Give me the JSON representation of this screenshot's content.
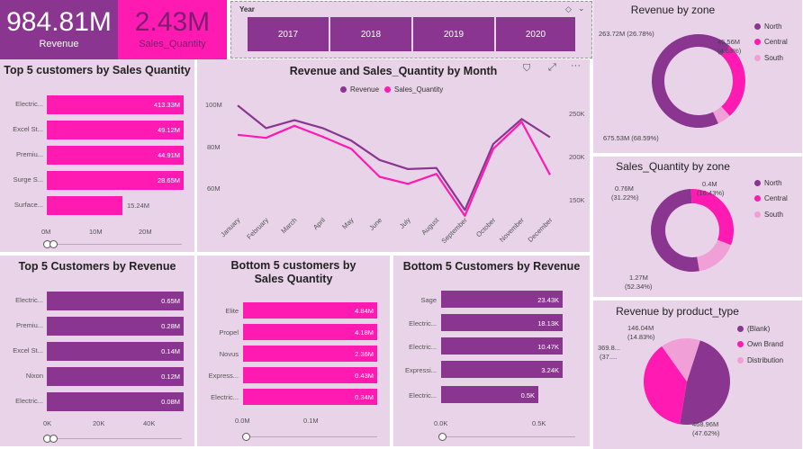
{
  "colors": {
    "purple": "#8a3590",
    "pink": "#ff1ab2",
    "light_pink": "#f0a0d6",
    "panel": "#e8d3e8"
  },
  "kpis": {
    "revenue": {
      "value": "984.81M",
      "label": "Revenue"
    },
    "sales_qty": {
      "value": "2.43M",
      "label": "Sales_Quantity"
    }
  },
  "year_slicer": {
    "title": "Year",
    "years": [
      "2017",
      "2018",
      "2019",
      "2020"
    ]
  },
  "top5_qty": {
    "title": "Top 5 customers by Sales Quantity",
    "rows": [
      {
        "label": "Electric...",
        "value": 413.33,
        "text": "413.33M"
      },
      {
        "label": "Excel St...",
        "value": 49.12,
        "text": "49.12M"
      },
      {
        "label": "Premiu...",
        "value": 44.91,
        "text": "44.91M"
      },
      {
        "label": "Surge S...",
        "value": 28.65,
        "text": "28.65M"
      },
      {
        "label": "Surface...",
        "value": 15.24,
        "text": "15.24M"
      }
    ],
    "ticks": [
      "0M",
      "10M",
      "20M"
    ],
    "axis_max": 30
  },
  "line_chart": {
    "title": "Revenue and Sales_Quantity by Month",
    "legend": [
      "Revenue",
      "Sales_Quantity"
    ],
    "left_ticks": [
      "100M",
      "80M",
      "60M"
    ],
    "right_ticks": [
      "250K",
      "200K",
      "150K"
    ],
    "months": [
      "January",
      "February",
      "March",
      "April",
      "May",
      "June",
      "July",
      "August",
      "September",
      "October",
      "November",
      "December"
    ]
  },
  "chart_data": {
    "type": "line",
    "x": [
      "January",
      "February",
      "March",
      "April",
      "May",
      "June",
      "July",
      "August",
      "September",
      "October",
      "November",
      "December"
    ],
    "series": [
      {
        "name": "Revenue",
        "axis": "left",
        "values": [
          99,
          89,
          92.5,
          89,
          83.5,
          75,
          71,
          71.5,
          53,
          82,
          93,
          85
        ]
      },
      {
        "name": "Sales_Quantity",
        "axis": "right",
        "values": [
          222,
          219,
          231,
          220,
          208,
          180,
          173,
          183,
          141,
          208,
          235,
          182
        ]
      }
    ],
    "y_left_range": [
      50,
      105
    ],
    "y_right_range": [
      140,
      265
    ]
  },
  "revenue_zone": {
    "title": "Revenue by zone",
    "legend": [
      "North",
      "Central",
      "South"
    ],
    "labels": {
      "north": "675.53M (68.59%)",
      "central": "263.72M (26.78%)",
      "south_value": "45.56M",
      "south_pct": "(4.63%)"
    },
    "shares": [
      68.59,
      26.78,
      4.63
    ]
  },
  "qty_zone": {
    "title": "Sales_Quantity by zone",
    "legend": [
      "North",
      "Central",
      "South"
    ],
    "labels": {
      "north_value": "1.27M",
      "north_pct": "(52.34%)",
      "central_value": "0.76M",
      "central_pct": "(31.22%)",
      "south_value": "0.4M",
      "south_pct": "(16.43%)"
    },
    "shares": [
      52.34,
      31.22,
      16.43
    ]
  },
  "product_type": {
    "title": "Revenue by product_type",
    "legend": [
      "(Blank)",
      "Own Brand",
      "Distribution"
    ],
    "labels": {
      "blank_value": "468.96M",
      "blank_pct": "(47.62%)",
      "own_value": "369.8...",
      "own_pct": "(37....",
      "dist_value": "146.04M",
      "dist_pct": "(14.83%)"
    },
    "shares": [
      47.62,
      37.55,
      14.83
    ]
  },
  "top5_rev": {
    "title": "Top 5 Customers by Revenue",
    "rows": [
      {
        "label": "Electric...",
        "value": 0.65,
        "text": "0.65M"
      },
      {
        "label": "Premiu...",
        "value": 0.28,
        "text": "0.28M"
      },
      {
        "label": "Excel St...",
        "value": 0.14,
        "text": "0.14M"
      },
      {
        "label": "Nixon",
        "value": 0.12,
        "text": "0.12M"
      },
      {
        "label": "Electric...",
        "value": 0.08,
        "text": "0.08M"
      }
    ],
    "ticks": [
      "0K",
      "20K",
      "40K"
    ]
  },
  "bottom5_qty": {
    "title": "Bottom 5 customers by Sales Quantity",
    "rows": [
      {
        "label": "Elite",
        "value": 4.84,
        "text": "4.84M"
      },
      {
        "label": "Propel",
        "value": 4.18,
        "text": "4.18M"
      },
      {
        "label": "Novus",
        "value": 2.36,
        "text": "2.36M"
      },
      {
        "label": "Express...",
        "value": 0.43,
        "text": "0.43M"
      },
      {
        "label": "Electric...",
        "value": 0.34,
        "text": "0.34M"
      }
    ],
    "ticks": [
      "0.0M",
      "0.1M"
    ]
  },
  "bottom5_rev": {
    "title": "Bottom 5 Customers by Revenue",
    "rows": [
      {
        "label": "Sage",
        "value": 23.43,
        "text": "23.43K"
      },
      {
        "label": "Electric...",
        "value": 18.13,
        "text": "18.13K"
      },
      {
        "label": "Electric...",
        "value": 10.47,
        "text": "10.47K"
      },
      {
        "label": "Expressi...",
        "value": 3.24,
        "text": "3.24K"
      },
      {
        "label": "Electric...",
        "value": 0.5,
        "text": "0.5K"
      }
    ],
    "ticks": [
      "0.0K",
      "0.5K"
    ]
  }
}
